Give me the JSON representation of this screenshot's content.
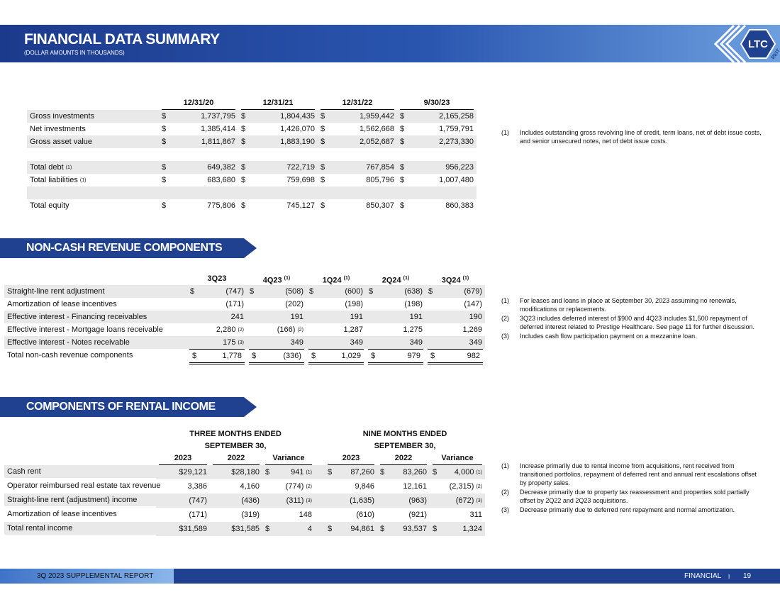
{
  "header": {
    "title": "FINANCIAL DATA SUMMARY",
    "subtitle": "(DOLLAR AMOUNTS IN THOUSANDS)",
    "logo_text": "LTC",
    "logo_sub": "REIT"
  },
  "summary_table": {
    "columns": [
      "12/31/20",
      "12/31/21",
      "12/31/22",
      "9/30/23"
    ],
    "row_groups": [
      [
        {
          "label": "Gross investments",
          "cells": [
            {
              "sign": "$",
              "text": "1,737,795"
            },
            {
              "sign": "$",
              "text": "1,804,435"
            },
            {
              "sign": "$",
              "text": "1,959,442"
            },
            {
              "sign": "$",
              "text": "2,165,258"
            }
          ]
        },
        {
          "label": "Net investments",
          "cells": [
            {
              "sign": "$",
              "text": "1,385,414"
            },
            {
              "sign": "$",
              "text": "1,426,070"
            },
            {
              "sign": "$",
              "text": "1,562,668"
            },
            {
              "sign": "$",
              "text": "1,759,791"
            }
          ]
        },
        {
          "label": "Gross asset value",
          "cells": [
            {
              "sign": "$",
              "text": "1,811,867"
            },
            {
              "sign": "$",
              "text": "1,883,190"
            },
            {
              "sign": "$",
              "text": "2,052,687"
            },
            {
              "sign": "$",
              "text": "2,273,330"
            }
          ]
        }
      ],
      [
        {
          "label": "Total debt",
          "note": "(1)",
          "cells": [
            {
              "sign": "$",
              "text": "649,382"
            },
            {
              "sign": "$",
              "text": "722,719"
            },
            {
              "sign": "$",
              "text": "767,854"
            },
            {
              "sign": "$",
              "text": "956,223"
            }
          ]
        },
        {
          "label": "Total liabilities",
          "note": "(1)",
          "cells": [
            {
              "sign": "$",
              "text": "683,680"
            },
            {
              "sign": "$",
              "text": "759,698"
            },
            {
              "sign": "$",
              "text": "805,796"
            },
            {
              "sign": "$",
              "text": "1,007,480"
            }
          ]
        }
      ],
      [
        {
          "label": "Total equity",
          "cells": [
            {
              "sign": "$",
              "text": "775,806"
            },
            {
              "sign": "$",
              "text": "745,127"
            },
            {
              "sign": "$",
              "text": "850,307"
            },
            {
              "sign": "$",
              "text": "860,383"
            }
          ]
        }
      ]
    ]
  },
  "summary_notes": [
    {
      "number": "(1)",
      "text": "Includes outstanding gross revolving line of credit, term loans, net of debt issue costs, and senior unsecured notes, net of debt issue costs."
    }
  ],
  "noncash_section": {
    "title": "NON-CASH REVENUE COMPONENTS",
    "columns": [
      {
        "text": "3Q23"
      },
      {
        "text": "4Q23",
        "note": "(1)"
      },
      {
        "text": "1Q24",
        "note": "(1)"
      },
      {
        "text": "2Q24",
        "note": "(1)"
      },
      {
        "text": "3Q24",
        "note": "(1)"
      }
    ],
    "rows": [
      {
        "label": "Straight-line rent adjustment",
        "cells": [
          {
            "sign": "$",
            "text": "(747)"
          },
          {
            "sign": "$",
            "text": "(508)"
          },
          {
            "sign": "$",
            "text": "(600)"
          },
          {
            "sign": "$",
            "text": "(638)"
          },
          {
            "sign": "$",
            "text": "(679)"
          }
        ]
      },
      {
        "label": "Amortization of lease incentives",
        "cells": [
          "(171)",
          "(202)",
          "(198)",
          "(198)",
          "(147)"
        ]
      },
      {
        "label": "Effective interest - Financing receivables",
        "cells": [
          "241",
          "191",
          "191",
          "191",
          "190"
        ]
      },
      {
        "label": "Effective interest - Mortgage loans receivable",
        "cells": [
          {
            "text": "2,280",
            "note": "(2)"
          },
          {
            "text": "(166)",
            "note": "(2)"
          },
          "1,287",
          "1,275",
          "1,269"
        ]
      },
      {
        "label": "Effective interest - Notes receivable",
        "cells": [
          {
            "text": "175",
            "note": "(3)"
          },
          "349",
          "349",
          "349",
          "349"
        ]
      },
      {
        "label": "Total non-cash revenue components",
        "cells": [
          {
            "sign": "$",
            "text": "1,778"
          },
          {
            "sign": "$",
            "text": "(336)"
          },
          {
            "sign": "$",
            "text": "1,029"
          },
          {
            "sign": "$",
            "text": "979"
          },
          {
            "sign": "$",
            "text": "982"
          }
        ]
      }
    ],
    "notes": [
      {
        "number": "(1)",
        "text": "For leases and loans in place at September 30, 2023 assuming no renewals, modifications or replacements."
      },
      {
        "number": "(2)",
        "text": "3Q23 includes deferred interest of $900 and 4Q23 includes $1,500 repayment of deferred interest related to Prestige Healthcare.  See page 11 for further discussion."
      },
      {
        "number": "(3)",
        "text": "Includes cash flow participation payment on a mezzanine loan."
      }
    ]
  },
  "rental_section": {
    "title": "COMPONENTS OF RENTAL INCOME",
    "group_headers": [
      [
        "THREE MONTHS ENDED",
        "SEPTEMBER 30,"
      ],
      [
        "NINE MONTHS ENDED",
        "SEPTEMBER 30,"
      ]
    ],
    "columns": [
      "2023",
      "2022",
      "Variance",
      "2023",
      "2022",
      "Variance"
    ],
    "rows": [
      {
        "label": "Cash rent",
        "cells": [
          "$29,121",
          "$28,180",
          {
            "sign": "$",
            "text": "941",
            "note": "(1)"
          },
          {
            "sign": "$",
            "text": "87,260"
          },
          {
            "sign": "$",
            "text": "83,260"
          },
          {
            "sign": "$",
            "text": "4,000",
            "note": "(1)"
          }
        ]
      },
      {
        "label": "Operator reimbursed real estate tax revenue",
        "cells": [
          "3,386",
          "4,160",
          {
            "text": "(774)",
            "note": "(2)"
          },
          "9,846",
          "12,161",
          {
            "text": "(2,315)",
            "note": "(2)"
          }
        ]
      },
      {
        "label": "Straight-line rent (adjustment) income",
        "cells": [
          "(747)",
          "(436)",
          {
            "text": "(311)",
            "note": "(3)"
          },
          "(1,635)",
          "(963)",
          {
            "text": "(672)",
            "note": "(3)"
          }
        ]
      },
      {
        "label": "Amortization of lease incentives",
        "cells": [
          "(171)",
          "(319)",
          "148",
          "(610)",
          "(921)",
          "311"
        ]
      },
      {
        "label": "Total rental income",
        "cells": [
          "$31,589",
          "$31,585",
          {
            "sign": "$",
            "text": "4"
          },
          {
            "sign": "$",
            "text": "94,861"
          },
          {
            "sign": "$",
            "text": "93,537"
          },
          {
            "sign": "$",
            "text": "1,324"
          }
        ]
      }
    ],
    "notes": [
      {
        "number": "(1)",
        "text": "Increase primarily due to rental income from acquisitions, rent received from transitioned portfolios, repayment of deferred rent and annual rent escalations offset by property sales."
      },
      {
        "number": "(2)",
        "text": "Decrease primarily due to property tax reassessment and properties sold partially offset by 2Q22 and 2Q23 acquisitions."
      },
      {
        "number": "(3)",
        "text": "Decrease primarily due to deferred rent repayment and normal amortization."
      }
    ]
  },
  "footer": {
    "report": "3Q 2023 SUPPLEMENTAL REPORT",
    "section": "FINANCIAL",
    "divider": "I",
    "page": "19"
  }
}
